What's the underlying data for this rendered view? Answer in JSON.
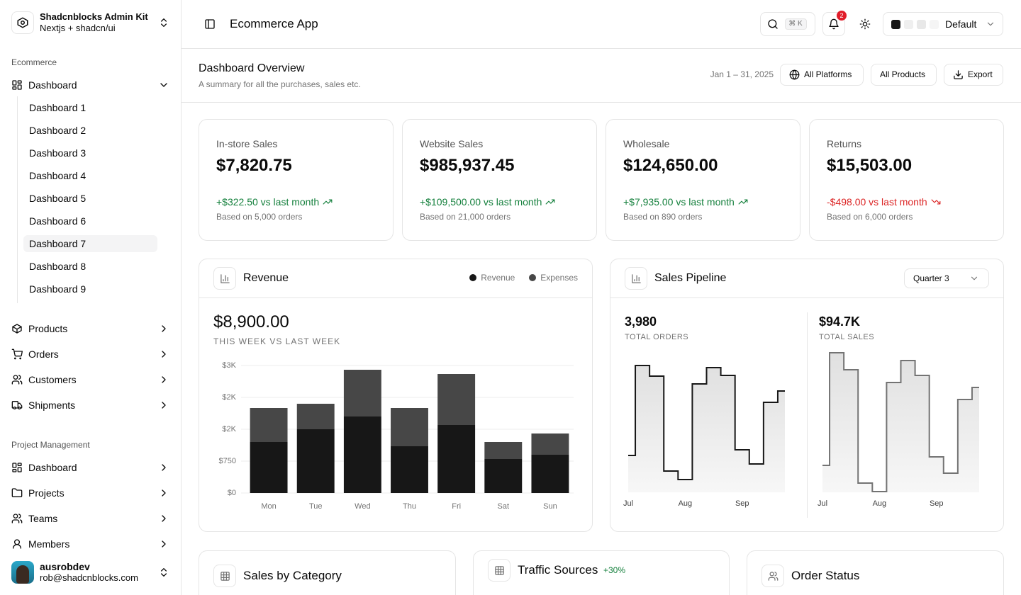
{
  "sidebar": {
    "brand": {
      "title": "Shadcnblocks Admin Kit",
      "subtitle": "Nextjs + shadcn/ui"
    },
    "groups": [
      {
        "label": "Ecommerce",
        "items": [
          {
            "label": "Dashboard",
            "children": [
              "Dashboard 1",
              "Dashboard 2",
              "Dashboard 3",
              "Dashboard 4",
              "Dashboard 5",
              "Dashboard 6",
              "Dashboard 7",
              "Dashboard 8",
              "Dashboard 9"
            ],
            "active_child": 6
          },
          {
            "label": "Products"
          },
          {
            "label": "Orders"
          },
          {
            "label": "Customers"
          },
          {
            "label": "Shipments"
          }
        ]
      },
      {
        "label": "Project Management",
        "items": [
          {
            "label": "Dashboard"
          },
          {
            "label": "Projects"
          },
          {
            "label": "Teams"
          },
          {
            "label": "Members"
          }
        ]
      }
    ],
    "user": {
      "name": "ausrobdev",
      "email": "rob@shadcnblocks.com"
    }
  },
  "header": {
    "title": "Ecommerce App",
    "search_shortcut": "⌘ K",
    "notifications": 2,
    "theme": "Default"
  },
  "overview": {
    "title": "Dashboard Overview",
    "subtitle": "A summary for all the purchases, sales etc.",
    "date_range": "Jan 1 – 31, 2025",
    "buttons": [
      "All Platforms",
      "All Products",
      "Export"
    ]
  },
  "kpis": [
    {
      "label": "In-store Sales",
      "value": "$7,820.75",
      "change": "+$322.50 vs last month",
      "note": "Based on 5,000 orders",
      "trend": "up"
    },
    {
      "label": "Website Sales",
      "value": "$985,937.45",
      "change": "+$109,500.00 vs last month",
      "note": "Based on 21,000 orders",
      "trend": "up"
    },
    {
      "label": "Wholesale",
      "value": "$124,650.00",
      "change": "+$7,935.00 vs last month",
      "note": "Based on 890 orders",
      "trend": "up"
    },
    {
      "label": "Returns",
      "value": "$15,503.00",
      "change": "-$498.00 vs last month",
      "note": "Based on 6,000 orders",
      "trend": "down"
    }
  ],
  "revenue": {
    "title": "Revenue",
    "total": "$8,900.00",
    "caption": "THIS WEEK VS LAST WEEK"
  },
  "pipeline": {
    "title": "Sales Pipeline",
    "period": "Quarter 3",
    "metrics": [
      {
        "value": "3,980",
        "label": "TOTAL ORDERS"
      },
      {
        "value": "$94.7K",
        "label": "TOTAL SALES"
      }
    ]
  },
  "bottom_cards": [
    {
      "title": "Sales by Category"
    },
    {
      "title": "Traffic Sources",
      "badge": "+30%"
    },
    {
      "title": "Order Status"
    }
  ],
  "chart_data": [
    {
      "type": "bar",
      "stacked": true,
      "categories": [
        "Mon",
        "Tue",
        "Wed",
        "Thu",
        "Fri",
        "Sat",
        "Sun"
      ],
      "series": [
        {
          "name": "Revenue",
          "color": "#171717",
          "values": [
            1200,
            1500,
            1800,
            1100,
            1600,
            800,
            900
          ]
        },
        {
          "name": "Expenses",
          "color": "#474747",
          "values": [
            800,
            600,
            1100,
            900,
            1200,
            400,
            500
          ]
        }
      ],
      "ylim": [
        0,
        3000
      ],
      "yticks": [
        {
          "value": 0,
          "label": "$0"
        },
        {
          "value": 750,
          "label": "$750"
        },
        {
          "value": 1500,
          "label": "$2K"
        },
        {
          "value": 2250,
          "label": "$2K"
        },
        {
          "value": 3000,
          "label": "$3K"
        }
      ],
      "grid": true,
      "legend": "top-right"
    },
    {
      "type": "line",
      "step": true,
      "area": true,
      "categories": [
        "Jul",
        null,
        null,
        null,
        "Aug",
        null,
        null,
        null,
        "Sep",
        null,
        null,
        null
      ],
      "values": [
        52,
        179,
        164,
        30,
        18,
        153,
        176,
        165,
        60,
        40,
        127,
        143
      ],
      "color": "#171717",
      "ylim": [
        0,
        200
      ]
    },
    {
      "type": "line",
      "step": true,
      "area": true,
      "categories": [
        "Jul",
        null,
        null,
        null,
        "Aug",
        null,
        null,
        null,
        "Sep",
        null,
        null,
        null
      ],
      "values": [
        38,
        197,
        173,
        13,
        1,
        155,
        186,
        165,
        50,
        27,
        131,
        148
      ],
      "color": "#737373",
      "ylim": [
        0,
        200
      ]
    }
  ]
}
